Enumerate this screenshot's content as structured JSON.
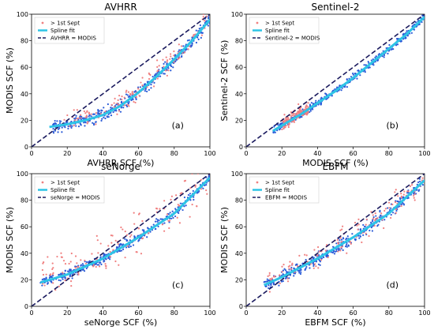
{
  "colors": {
    "after_sept": "#f08080",
    "points": "#2a5bd7",
    "spline": "#2ec4e6",
    "identity": "#1a1a5e"
  },
  "chart_data": [
    {
      "type": "scatter",
      "title": "AVHRR",
      "xlabel": "AVHRR SCF (%)",
      "ylabel": "MODIS SCF (%)",
      "panel_label": "(a)",
      "xlim": [
        0,
        100
      ],
      "ylim": [
        0,
        100
      ],
      "xticks": [
        "0",
        "20",
        "40",
        "60",
        "80",
        "100"
      ],
      "yticks": [
        "0",
        "20",
        "40",
        "60",
        "80",
        "100"
      ],
      "legend": [
        "> 1st Sept",
        "Spline fit",
        "AVHRR = MODIS"
      ],
      "legend_position": "top-left",
      "spline": {
        "x": [
          10,
          20,
          30,
          40,
          50,
          60,
          70,
          80,
          90,
          100
        ],
        "y": [
          15,
          17,
          20,
          24,
          31,
          41,
          53,
          66,
          80,
          96
        ]
      },
      "series": [
        {
          "role": "points",
          "xmin": 12,
          "xmax": 100,
          "spread": 8
        },
        {
          "role": "after_sept",
          "xmin": 18,
          "xmax": 100,
          "spread": 12
        }
      ]
    },
    {
      "type": "scatter",
      "title": "Sentinel-2",
      "xlabel": "MODIS SCF (%)",
      "ylabel": "Sentinel-2 SCF (%)",
      "panel_label": "(b)",
      "xlim": [
        0,
        100
      ],
      "ylim": [
        0,
        100
      ],
      "xticks": [
        "0",
        "20",
        "40",
        "60",
        "80",
        "100"
      ],
      "yticks": [
        "0",
        "20",
        "40",
        "60",
        "80",
        "100"
      ],
      "legend": [
        "> 1st Sept",
        "Spline fit",
        "Sentinel-2 = MODIS"
      ],
      "legend_position": "top-left",
      "spline": {
        "x": [
          15,
          20,
          30,
          40,
          50,
          60,
          70,
          80,
          90,
          100
        ],
        "y": [
          12,
          16,
          24,
          33,
          42,
          52,
          63,
          74,
          85,
          98
        ]
      },
      "series": [
        {
          "role": "points",
          "xmin": 15,
          "xmax": 100,
          "spread": 5
        },
        {
          "role": "after_sept",
          "xmin": 20,
          "xmax": 35,
          "spread": 8
        }
      ]
    },
    {
      "type": "scatter",
      "title": "seNorge",
      "xlabel": "seNorge SCF (%)",
      "ylabel": "MODIS SCF (%)",
      "panel_label": "(c)",
      "xlim": [
        0,
        100
      ],
      "ylim": [
        0,
        100
      ],
      "xticks": [
        "0",
        "20",
        "40",
        "60",
        "80",
        "100"
      ],
      "yticks": [
        "0",
        "20",
        "40",
        "60",
        "80",
        "100"
      ],
      "legend": [
        "> 1st Sept",
        "Spline fit",
        "seNorge = MODIS"
      ],
      "legend_position": "top-left",
      "spline": {
        "x": [
          5,
          20,
          40,
          60,
          80,
          100
        ],
        "y": [
          18,
          24,
          36,
          52,
          70,
          97
        ]
      },
      "series": [
        {
          "role": "points",
          "xmin": 5,
          "xmax": 100,
          "spread": 6
        },
        {
          "role": "after_sept",
          "xmin": 5,
          "xmax": 100,
          "spread": 30
        }
      ]
    },
    {
      "type": "scatter",
      "title": "EBFM",
      "xlabel": "EBFM SCF (%)",
      "ylabel": "MODIS SCF (%)",
      "panel_label": "(d)",
      "xlim": [
        0,
        100
      ],
      "ylim": [
        0,
        100
      ],
      "xticks": [
        "0",
        "20",
        "40",
        "60",
        "80",
        "100"
      ],
      "yticks": [
        "0",
        "20",
        "40",
        "60",
        "80",
        "100"
      ],
      "legend": [
        "> 1st Sept",
        "Spline fit",
        "EBFM = MODIS"
      ],
      "legend_position": "top-left",
      "spline": {
        "x": [
          10,
          20,
          40,
          60,
          80,
          100
        ],
        "y": [
          16,
          22,
          36,
          52,
          70,
          95
        ]
      },
      "series": [
        {
          "role": "points",
          "xmin": 10,
          "xmax": 100,
          "spread": 8
        },
        {
          "role": "after_sept",
          "xmin": 12,
          "xmax": 100,
          "spread": 15
        }
      ]
    }
  ]
}
